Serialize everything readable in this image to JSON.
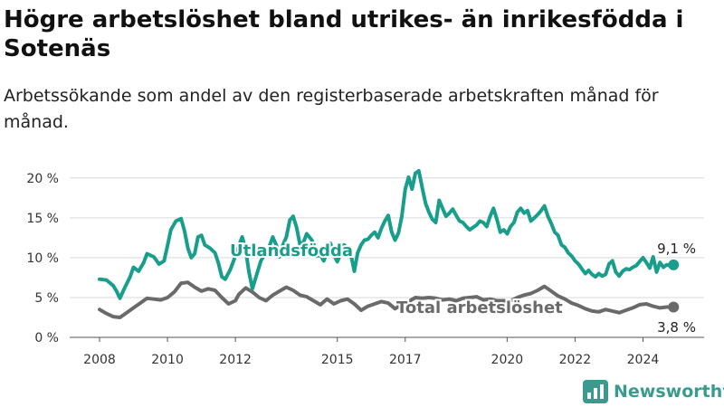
{
  "title": "Högre arbetslöshet bland utrikes- än inrikesfödda i Sotenäs",
  "subtitle": "Arbetssökande som andel av den registerbaserade arbetskraften månad för månad.",
  "brand": {
    "name": "Newsworthy",
    "icon": "newsworthy-logo-icon",
    "color": "#3a9a8d"
  },
  "chart_data": {
    "type": "line",
    "xlim": [
      2008,
      2025
    ],
    "ylim": [
      0,
      21
    ],
    "y_ticks": [
      {
        "value": 0,
        "label": "0 %"
      },
      {
        "value": 5,
        "label": "5 %"
      },
      {
        "value": 10,
        "label": "10 %"
      },
      {
        "value": 15,
        "label": "15 %"
      },
      {
        "value": 20,
        "label": "20 %"
      }
    ],
    "x_ticks": [
      {
        "value": 2008,
        "label": "2008"
      },
      {
        "value": 2010,
        "label": "2010"
      },
      {
        "value": 2012,
        "label": "2012"
      },
      {
        "value": 2015,
        "label": "2015"
      },
      {
        "value": 2017,
        "label": "2017"
      },
      {
        "value": 2020,
        "label": "2020"
      },
      {
        "value": 2022,
        "label": "2022"
      },
      {
        "value": 2024,
        "label": "2024"
      }
    ],
    "grid": "horizontal",
    "series": [
      {
        "name": "Utlandsfödda",
        "color": "#1a9e8c",
        "end_label": "9,1 %",
        "points": [
          [
            2008.0,
            7.3
          ],
          [
            2008.2,
            7.2
          ],
          [
            2008.4,
            6.5
          ],
          [
            2008.5,
            5.8
          ],
          [
            2008.6,
            4.9
          ],
          [
            2008.75,
            6.3
          ],
          [
            2008.9,
            7.6
          ],
          [
            2009.0,
            8.8
          ],
          [
            2009.15,
            8.3
          ],
          [
            2009.3,
            9.4
          ],
          [
            2009.4,
            10.5
          ],
          [
            2009.6,
            10.1
          ],
          [
            2009.75,
            9.2
          ],
          [
            2009.9,
            9.6
          ],
          [
            2010.0,
            11.5
          ],
          [
            2010.1,
            13.5
          ],
          [
            2010.25,
            14.6
          ],
          [
            2010.4,
            14.9
          ],
          [
            2010.5,
            13.4
          ],
          [
            2010.6,
            11.2
          ],
          [
            2010.7,
            10.0
          ],
          [
            2010.8,
            10.5
          ],
          [
            2010.9,
            12.6
          ],
          [
            2011.0,
            12.8
          ],
          [
            2011.1,
            11.6
          ],
          [
            2011.25,
            11.2
          ],
          [
            2011.4,
            10.6
          ],
          [
            2011.5,
            9.3
          ],
          [
            2011.6,
            7.6
          ],
          [
            2011.7,
            7.3
          ],
          [
            2011.85,
            8.5
          ],
          [
            2012.0,
            10.2
          ],
          [
            2012.1,
            11.5
          ],
          [
            2012.2,
            12.6
          ],
          [
            2012.3,
            11.0
          ],
          [
            2012.4,
            8.2
          ],
          [
            2012.5,
            6.1
          ],
          [
            2012.6,
            7.5
          ],
          [
            2012.75,
            9.6
          ],
          [
            2012.9,
            10.7
          ],
          [
            2013.0,
            11.4
          ],
          [
            2013.1,
            12.6
          ],
          [
            2013.2,
            11.6
          ],
          [
            2013.3,
            10.1
          ],
          [
            2013.4,
            11.6
          ],
          [
            2013.5,
            12.6
          ],
          [
            2013.6,
            14.7
          ],
          [
            2013.7,
            15.2
          ],
          [
            2013.8,
            13.8
          ],
          [
            2013.9,
            11.7
          ],
          [
            2014.0,
            11.9
          ],
          [
            2014.1,
            13.0
          ],
          [
            2014.25,
            12.2
          ],
          [
            2014.4,
            10.2
          ],
          [
            2014.5,
            10.4
          ],
          [
            2014.6,
            9.6
          ],
          [
            2014.7,
            10.8
          ],
          [
            2014.8,
            11.8
          ],
          [
            2014.9,
            10.3
          ],
          [
            2015.0,
            9.5
          ],
          [
            2015.1,
            10.5
          ],
          [
            2015.2,
            11.6
          ],
          [
            2015.3,
            11.2
          ],
          [
            2015.4,
            10.4
          ],
          [
            2015.5,
            8.3
          ],
          [
            2015.6,
            10.6
          ],
          [
            2015.7,
            11.6
          ],
          [
            2015.8,
            12.2
          ],
          [
            2015.9,
            12.3
          ],
          [
            2016.0,
            12.8
          ],
          [
            2016.1,
            13.2
          ],
          [
            2016.2,
            12.5
          ],
          [
            2016.3,
            13.7
          ],
          [
            2016.4,
            14.6
          ],
          [
            2016.5,
            15.3
          ],
          [
            2016.6,
            13.2
          ],
          [
            2016.7,
            12.2
          ],
          [
            2016.8,
            13.1
          ],
          [
            2016.9,
            15.2
          ],
          [
            2017.0,
            18.6
          ],
          [
            2017.1,
            20.1
          ],
          [
            2017.2,
            18.6
          ],
          [
            2017.3,
            20.6
          ],
          [
            2017.4,
            20.9
          ],
          [
            2017.5,
            18.8
          ],
          [
            2017.6,
            16.8
          ],
          [
            2017.7,
            15.7
          ],
          [
            2017.8,
            14.8
          ],
          [
            2017.9,
            14.4
          ],
          [
            2018.0,
            17.2
          ],
          [
            2018.1,
            16.2
          ],
          [
            2018.2,
            15.2
          ],
          [
            2018.3,
            15.6
          ],
          [
            2018.4,
            16.1
          ],
          [
            2018.5,
            15.3
          ],
          [
            2018.6,
            14.6
          ],
          [
            2018.7,
            14.4
          ],
          [
            2018.8,
            13.9
          ],
          [
            2018.9,
            13.5
          ],
          [
            2019.0,
            13.8
          ],
          [
            2019.1,
            14.1
          ],
          [
            2019.2,
            14.6
          ],
          [
            2019.3,
            14.4
          ],
          [
            2019.4,
            13.9
          ],
          [
            2019.5,
            15.2
          ],
          [
            2019.6,
            16.2
          ],
          [
            2019.7,
            14.8
          ],
          [
            2019.8,
            13.2
          ],
          [
            2019.9,
            13.5
          ],
          [
            2020.0,
            13.0
          ],
          [
            2020.1,
            13.9
          ],
          [
            2020.2,
            14.4
          ],
          [
            2020.3,
            15.7
          ],
          [
            2020.4,
            16.2
          ],
          [
            2020.5,
            15.6
          ],
          [
            2020.6,
            15.9
          ],
          [
            2020.7,
            14.6
          ],
          [
            2020.8,
            15.0
          ],
          [
            2020.9,
            15.4
          ],
          [
            2021.0,
            15.9
          ],
          [
            2021.1,
            16.5
          ],
          [
            2021.2,
            15.2
          ],
          [
            2021.3,
            14.3
          ],
          [
            2021.4,
            13.2
          ],
          [
            2021.5,
            12.8
          ],
          [
            2021.6,
            11.6
          ],
          [
            2021.7,
            11.3
          ],
          [
            2021.8,
            10.6
          ],
          [
            2021.9,
            10.2
          ],
          [
            2022.0,
            9.6
          ],
          [
            2022.1,
            9.2
          ],
          [
            2022.2,
            8.6
          ],
          [
            2022.3,
            8.0
          ],
          [
            2022.4,
            8.4
          ],
          [
            2022.5,
            7.9
          ],
          [
            2022.6,
            7.6
          ],
          [
            2022.7,
            8.0
          ],
          [
            2022.8,
            7.7
          ],
          [
            2022.9,
            7.9
          ],
          [
            2023.0,
            9.2
          ],
          [
            2023.1,
            9.6
          ],
          [
            2023.2,
            8.2
          ],
          [
            2023.3,
            7.7
          ],
          [
            2023.4,
            8.3
          ],
          [
            2023.5,
            8.6
          ],
          [
            2023.6,
            8.5
          ],
          [
            2023.7,
            8.8
          ],
          [
            2023.8,
            9.0
          ],
          [
            2023.9,
            9.5
          ],
          [
            2024.0,
            10.0
          ],
          [
            2024.1,
            9.4
          ],
          [
            2024.2,
            8.7
          ],
          [
            2024.3,
            10.1
          ],
          [
            2024.4,
            8.2
          ],
          [
            2024.5,
            9.4
          ],
          [
            2024.6,
            8.8
          ],
          [
            2024.7,
            9.1
          ],
          [
            2024.8,
            9.0
          ],
          [
            2024.9,
            9.1
          ]
        ]
      },
      {
        "name": "Total arbetslöshet",
        "color": "#6a6a6a",
        "end_label": "3,8 %",
        "points": [
          [
            2008.0,
            3.5
          ],
          [
            2008.2,
            3.0
          ],
          [
            2008.4,
            2.6
          ],
          [
            2008.6,
            2.5
          ],
          [
            2008.8,
            3.1
          ],
          [
            2009.0,
            3.7
          ],
          [
            2009.2,
            4.3
          ],
          [
            2009.4,
            4.9
          ],
          [
            2009.6,
            4.8
          ],
          [
            2009.8,
            4.7
          ],
          [
            2010.0,
            5.0
          ],
          [
            2010.2,
            5.7
          ],
          [
            2010.4,
            6.8
          ],
          [
            2010.6,
            6.9
          ],
          [
            2010.8,
            6.3
          ],
          [
            2011.0,
            5.8
          ],
          [
            2011.2,
            6.1
          ],
          [
            2011.4,
            5.9
          ],
          [
            2011.6,
            5.0
          ],
          [
            2011.8,
            4.2
          ],
          [
            2012.0,
            4.6
          ],
          [
            2012.1,
            5.4
          ],
          [
            2012.3,
            6.2
          ],
          [
            2012.5,
            5.7
          ],
          [
            2012.7,
            5.0
          ],
          [
            2012.9,
            4.6
          ],
          [
            2013.1,
            5.3
          ],
          [
            2013.3,
            5.8
          ],
          [
            2013.5,
            6.3
          ],
          [
            2013.7,
            5.9
          ],
          [
            2013.9,
            5.3
          ],
          [
            2014.1,
            5.1
          ],
          [
            2014.3,
            4.6
          ],
          [
            2014.5,
            4.1
          ],
          [
            2014.7,
            4.8
          ],
          [
            2014.9,
            4.2
          ],
          [
            2015.1,
            4.6
          ],
          [
            2015.3,
            4.8
          ],
          [
            2015.5,
            4.2
          ],
          [
            2015.7,
            3.4
          ],
          [
            2015.9,
            3.9
          ],
          [
            2016.1,
            4.2
          ],
          [
            2016.3,
            4.5
          ],
          [
            2016.5,
            4.3
          ],
          [
            2016.7,
            3.6
          ],
          [
            2016.9,
            4.1
          ],
          [
            2017.1,
            4.5
          ],
          [
            2017.3,
            5.0
          ],
          [
            2017.5,
            4.9
          ],
          [
            2017.7,
            5.0
          ],
          [
            2017.9,
            4.9
          ],
          [
            2018.1,
            4.7
          ],
          [
            2018.3,
            4.8
          ],
          [
            2018.5,
            4.6
          ],
          [
            2018.7,
            4.9
          ],
          [
            2018.9,
            5.0
          ],
          [
            2019.1,
            5.1
          ],
          [
            2019.3,
            4.7
          ],
          [
            2019.5,
            4.8
          ],
          [
            2019.7,
            4.6
          ],
          [
            2019.9,
            4.6
          ],
          [
            2020.1,
            4.6
          ],
          [
            2020.3,
            5.0
          ],
          [
            2020.5,
            5.3
          ],
          [
            2020.7,
            5.5
          ],
          [
            2020.9,
            5.9
          ],
          [
            2021.1,
            6.4
          ],
          [
            2021.3,
            5.8
          ],
          [
            2021.5,
            5.2
          ],
          [
            2021.7,
            4.8
          ],
          [
            2021.9,
            4.3
          ],
          [
            2022.1,
            4.0
          ],
          [
            2022.3,
            3.6
          ],
          [
            2022.5,
            3.3
          ],
          [
            2022.7,
            3.2
          ],
          [
            2022.9,
            3.5
          ],
          [
            2023.1,
            3.3
          ],
          [
            2023.3,
            3.1
          ],
          [
            2023.5,
            3.4
          ],
          [
            2023.7,
            3.7
          ],
          [
            2023.9,
            4.1
          ],
          [
            2024.1,
            4.2
          ],
          [
            2024.3,
            3.9
          ],
          [
            2024.5,
            3.7
          ],
          [
            2024.7,
            3.8
          ],
          [
            2024.9,
            3.8
          ]
        ]
      }
    ]
  }
}
